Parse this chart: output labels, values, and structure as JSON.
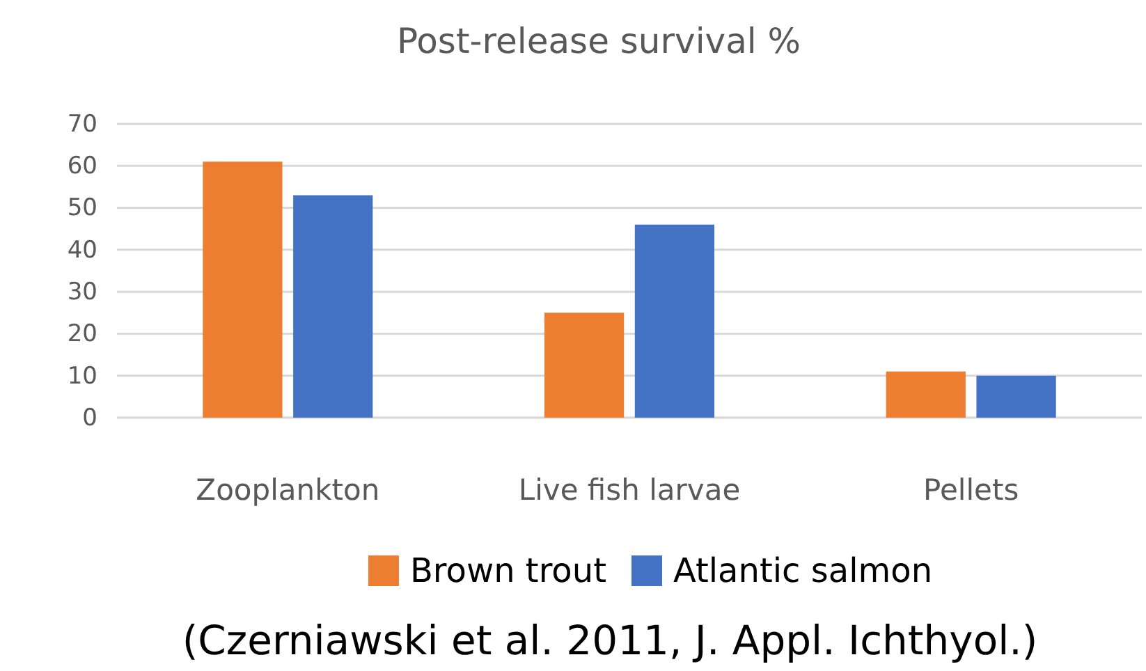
{
  "chart_data": {
    "type": "bar",
    "title": "Post-release survival %",
    "categories": [
      "Zooplankton",
      "Live fish larvae",
      "Pellets"
    ],
    "series": [
      {
        "name": "Brown trout",
        "color": "#ed7d31",
        "values": [
          61,
          25,
          11
        ]
      },
      {
        "name": "Atlantic salmon",
        "color": "#4472c4",
        "values": [
          53,
          46,
          10
        ]
      }
    ],
    "ylim": [
      0,
      70
    ],
    "yticks": [
      0,
      10,
      20,
      30,
      40,
      50,
      60,
      70
    ],
    "grid": "y",
    "legend": "bottom",
    "annotations": [
      "(Czerniawski et al. 2011, J. Appl. Ichthyol.)"
    ]
  }
}
